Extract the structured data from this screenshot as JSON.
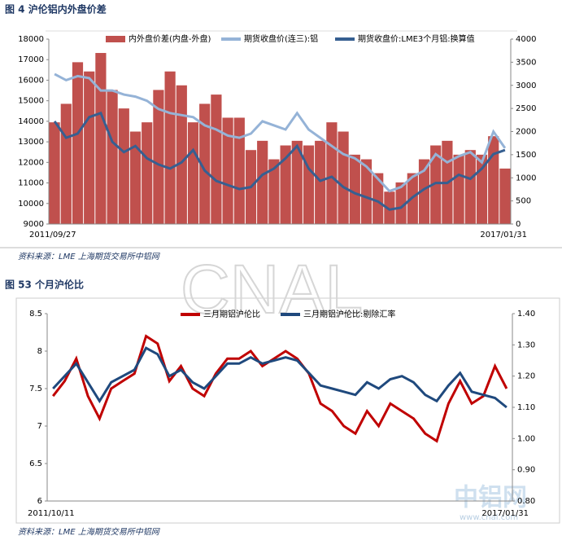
{
  "chart_data": [
    {
      "type": "combo",
      "title": "图 4 沪伦铝内外盘价差",
      "note": "资料来源：LME 上海期货交易所中铝网",
      "categories": [
        "2011/09/27",
        null,
        null,
        null,
        null,
        null,
        null,
        null,
        null,
        null,
        null,
        null,
        null,
        null,
        null,
        null,
        null,
        null,
        null,
        null,
        null,
        null,
        null,
        null,
        null,
        null,
        null,
        null,
        null,
        null,
        null,
        null,
        null,
        null,
        null,
        null,
        null,
        null,
        null,
        "2017/01/31"
      ],
      "ylim": [
        9000,
        18000
      ],
      "yticks": [
        9000,
        10000,
        11000,
        12000,
        13000,
        14000,
        15000,
        16000,
        17000,
        18000
      ],
      "y2lim": [
        0,
        4000
      ],
      "y2ticks": [
        0,
        500,
        1000,
        1500,
        2000,
        2500,
        3000,
        3500,
        4000
      ],
      "series": [
        {
          "name": "内外盘价差(内盘-外盘)",
          "type": "bar",
          "axis": "y2",
          "color": "#c0504d",
          "values": [
            2200,
            2600,
            3500,
            3300,
            3700,
            2900,
            2500,
            2000,
            2200,
            2900,
            3300,
            3000,
            2200,
            2600,
            2800,
            2300,
            2300,
            1600,
            1800,
            1400,
            1700,
            1800,
            1700,
            1800,
            2200,
            2000,
            1500,
            1400,
            1100,
            700,
            900,
            1100,
            1400,
            1700,
            1800,
            1500,
            1600,
            1500,
            1900,
            1200
          ]
        },
        {
          "name": "期货收盘价(连三):铝",
          "type": "line",
          "color": "#95b3d7",
          "values": [
            16300,
            16000,
            16200,
            16100,
            15500,
            15500,
            15300,
            15200,
            15000,
            14600,
            14400,
            14300,
            14200,
            13800,
            13600,
            13300,
            13200,
            13400,
            14000,
            13800,
            13600,
            14400,
            13600,
            13200,
            12800,
            12400,
            12200,
            11800,
            11200,
            10600,
            10800,
            11300,
            11600,
            12400,
            12000,
            12300,
            12500,
            12000,
            13500,
            12700
          ]
        },
        {
          "name": "期货收盘价:LME3个月铝:换算值",
          "type": "line",
          "color": "#365f91",
          "values": [
            14000,
            13200,
            13400,
            14200,
            14400,
            13000,
            12500,
            12800,
            12200,
            11900,
            11700,
            12000,
            12600,
            11600,
            11100,
            10900,
            10700,
            10800,
            11400,
            11700,
            12200,
            12800,
            11700,
            11100,
            11300,
            10800,
            10500,
            10300,
            10100,
            9700,
            9800,
            10300,
            10700,
            11000,
            11000,
            11400,
            11200,
            11700,
            12400,
            12600
          ]
        }
      ]
    },
    {
      "type": "line",
      "title": "图 53 个月沪伦比",
      "note": "资料来源：LME 上海期货交易所中铝网",
      "categories": [
        "2011/10/11",
        null,
        null,
        null,
        null,
        null,
        null,
        null,
        null,
        null,
        null,
        null,
        null,
        null,
        null,
        null,
        null,
        null,
        null,
        null,
        null,
        null,
        null,
        null,
        null,
        null,
        null,
        null,
        null,
        null,
        null,
        null,
        null,
        null,
        null,
        null,
        null,
        null,
        null,
        "2017/01/31"
      ],
      "ylim": [
        6,
        8.5
      ],
      "yticks": [
        6,
        6.5,
        7,
        7.5,
        8,
        8.5
      ],
      "y2lim": [
        0.8,
        1.4
      ],
      "y2ticks": [
        {
          "value": 0.8,
          "label": "0.80"
        },
        {
          "value": 0.9,
          "label": "0.90"
        },
        {
          "value": 1.0,
          "label": "1.00"
        },
        {
          "value": 1.1,
          "label": "1.10"
        },
        {
          "value": 1.2,
          "label": "1.20"
        },
        {
          "value": 1.3,
          "label": "1.30"
        },
        {
          "value": 1.4,
          "label": "1.40"
        }
      ],
      "series": [
        {
          "name": "三月期铝沪伦比",
          "type": "line",
          "color": "#c00000",
          "values": [
            7.4,
            7.6,
            7.9,
            7.4,
            7.1,
            7.5,
            7.6,
            7.7,
            8.2,
            8.1,
            7.6,
            7.8,
            7.5,
            7.4,
            7.7,
            7.9,
            7.9,
            8.0,
            7.8,
            7.9,
            8.0,
            7.9,
            7.7,
            7.3,
            7.2,
            7.0,
            6.9,
            7.2,
            7.0,
            7.3,
            7.2,
            7.1,
            6.9,
            6.8,
            7.3,
            7.6,
            7.3,
            7.4,
            7.8,
            7.5
          ]
        },
        {
          "name": "三月期铝沪伦比:剔除汇率",
          "type": "line",
          "axis": "y2",
          "color": "#1f497d",
          "values": [
            1.16,
            1.2,
            1.24,
            1.18,
            1.12,
            1.18,
            1.2,
            1.22,
            1.29,
            1.27,
            1.2,
            1.22,
            1.18,
            1.16,
            1.2,
            1.24,
            1.24,
            1.26,
            1.24,
            1.25,
            1.26,
            1.25,
            1.21,
            1.17,
            1.16,
            1.15,
            1.14,
            1.18,
            1.16,
            1.19,
            1.2,
            1.18,
            1.14,
            1.12,
            1.17,
            1.21,
            1.15,
            1.14,
            1.13,
            1.1
          ]
        }
      ]
    }
  ],
  "watermark": {
    "main": "CNAL",
    "logo": "中铝网",
    "url": "www.cnal.com"
  }
}
